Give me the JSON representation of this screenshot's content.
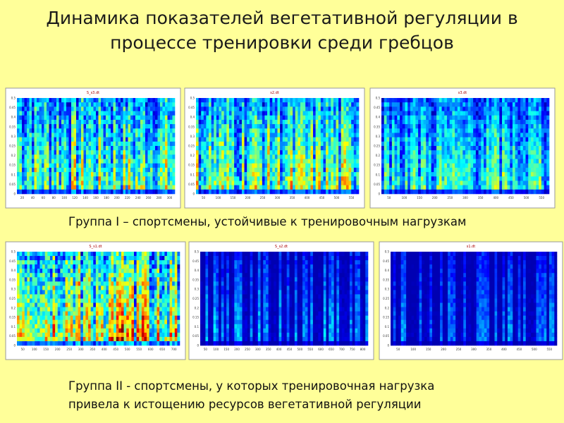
{
  "header": {
    "title": "Динамика показателей вегетативной регуляции в процессе тренировки среди гребцов"
  },
  "yticks": [
    "0.5",
    "0.45",
    "0.4",
    "0.35",
    "0.3",
    "0.25",
    "0.2",
    "0.15",
    "0.1",
    "0.05",
    "0"
  ],
  "groups": [
    {
      "caption": "Группа I – спортсмены, устойчивые к тренировочным нагрузкам",
      "panels": [
        {
          "title": "S_s3.dt",
          "xticks": [
            "20",
            "40",
            "60",
            "80",
            "100",
            "120",
            "140",
            "160",
            "180",
            "200",
            "220",
            "240",
            "260",
            "280",
            "300"
          ]
        },
        {
          "title": "s2.dt",
          "xticks": [
            "50",
            "100",
            "150",
            "200",
            "250",
            "300",
            "350",
            "400",
            "450",
            "500",
            "550"
          ]
        },
        {
          "title": "s3.dt",
          "xticks": [
            "50",
            "100",
            "150",
            "200",
            "250",
            "300",
            "350",
            "400",
            "450",
            "500",
            "550"
          ]
        }
      ]
    },
    {
      "caption": "Группа II - спортсмены, у которых тренировочная нагрузка привела к истощению ресурсов вегетативной регуляции",
      "panels": [
        {
          "title": "S_s1.dt",
          "xticks": [
            "50",
            "100",
            "150",
            "200",
            "250",
            "300",
            "350",
            "400",
            "450",
            "500",
            "550",
            "600",
            "650",
            "700"
          ]
        },
        {
          "title": "S_s2.dt",
          "xticks": [
            "50",
            "100",
            "150",
            "200",
            "250",
            "300",
            "350",
            "400",
            "450",
            "500",
            "550",
            "600",
            "650",
            "700",
            "750",
            "800"
          ]
        },
        {
          "title": "s1.dt",
          "xticks": [
            "50",
            "100",
            "150",
            "200",
            "250",
            "300",
            "350",
            "400",
            "450",
            "500",
            "550"
          ]
        }
      ]
    }
  ]
}
